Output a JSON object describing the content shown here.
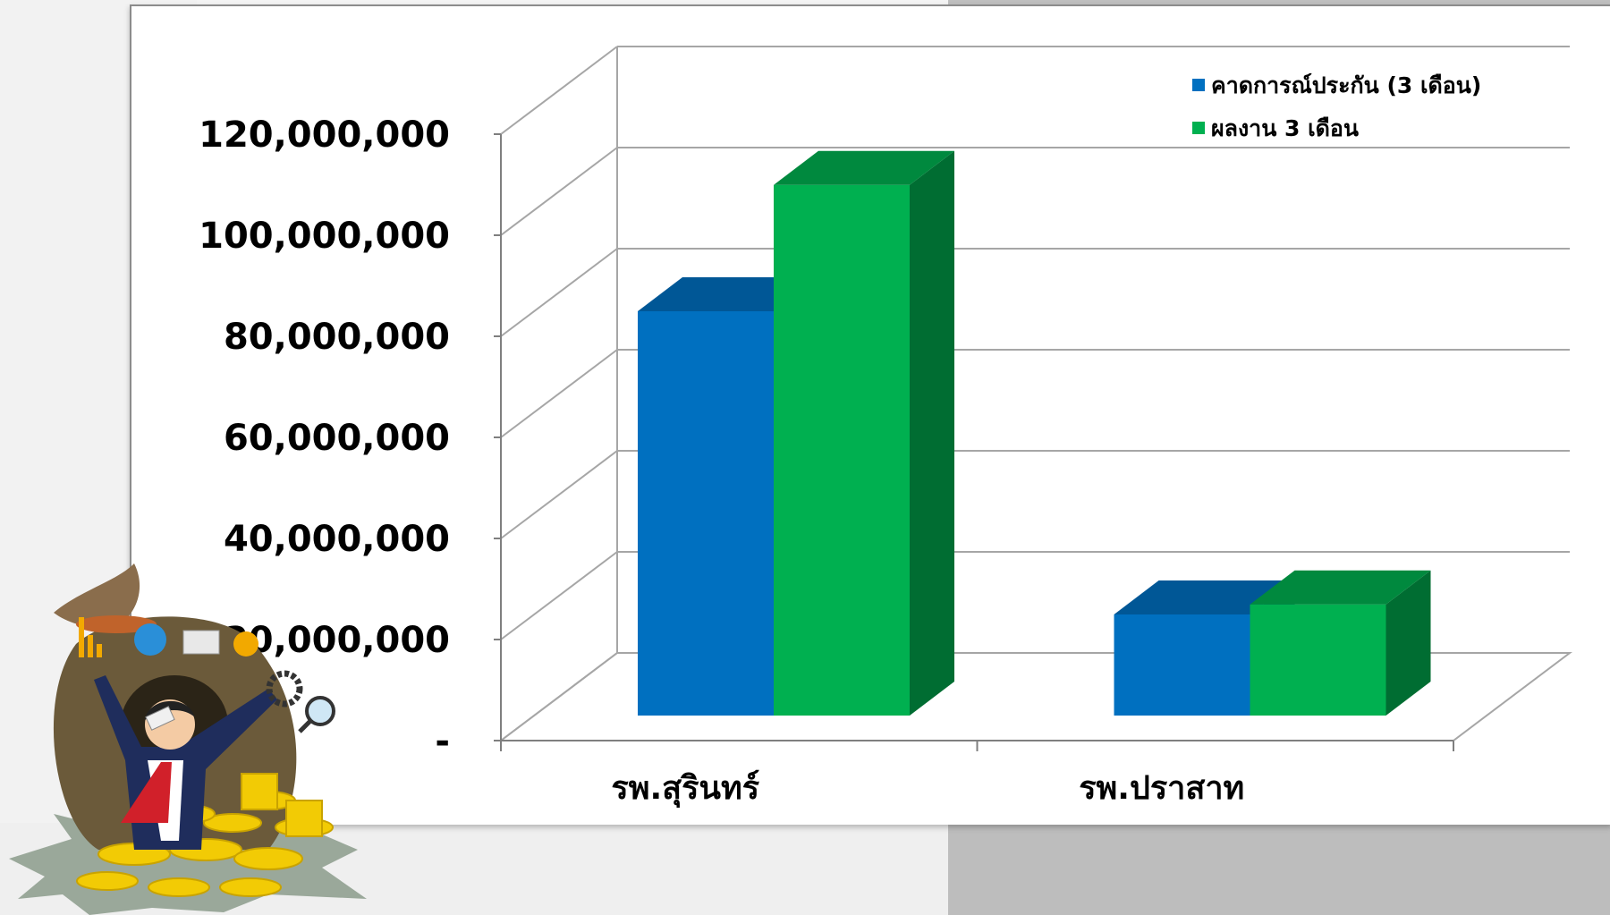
{
  "chart_data": {
    "type": "bar",
    "style": "3d-clustered",
    "categories": [
      "รพ.สุรินทร์",
      "รพ.ปราสาท"
    ],
    "series": [
      {
        "name": "คาดการณ์ประกัน (3 เดือน)",
        "color": "#0070c0",
        "values": [
          80000000,
          20000000
        ]
      },
      {
        "name": "ผลงาน 3 เดือน",
        "color": "#00b050",
        "values": [
          105000000,
          22000000
        ]
      }
    ],
    "y_ticks": [
      "-",
      "20,000,000",
      "40,000,000",
      "60,000,000",
      "80,000,000",
      "100,000,000",
      "120,000,000"
    ],
    "ylim": [
      0,
      120000000
    ],
    "grid": true,
    "legend": "top-right"
  }
}
